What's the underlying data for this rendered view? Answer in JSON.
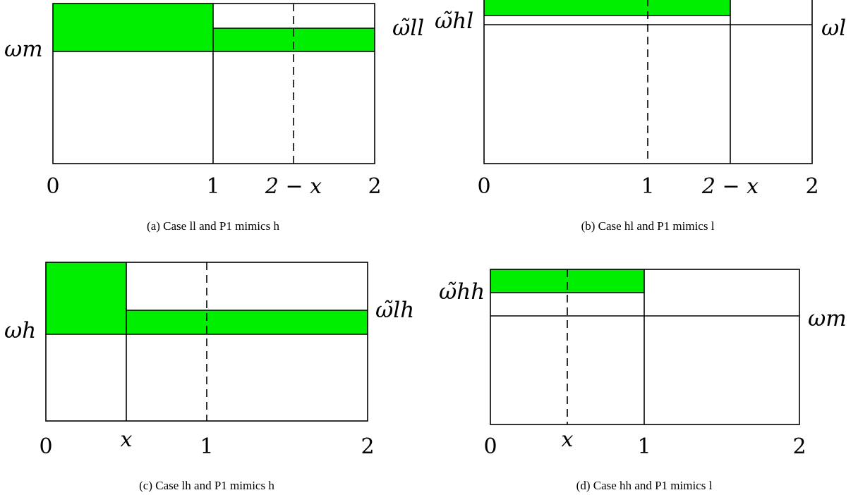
{
  "accent_color": "#00ee00",
  "panels": [
    {
      "caption": "(a) Case ll and P1 mimics h",
      "ticks": [
        "0",
        "1",
        "2 − x",
        "2"
      ],
      "left_label": "ωm",
      "right_label": "ω̃ll"
    },
    {
      "caption": "(b) Case hl and P1 mimics l",
      "ticks": [
        "0",
        "1",
        "2 − x",
        "2"
      ],
      "left_label": "ω̃hl",
      "right_label": "ωl"
    },
    {
      "caption": "(c) Case lh and P1 mimics h",
      "ticks": [
        "0",
        "x",
        "1",
        "2"
      ],
      "left_label": "ωh",
      "right_label": "ω̃lh"
    },
    {
      "caption": "(d) Case hh and P1 mimics l",
      "ticks": [
        "0",
        "x",
        "1",
        "2"
      ],
      "left_label": "ω̃hh",
      "right_label": "ωm"
    }
  ]
}
